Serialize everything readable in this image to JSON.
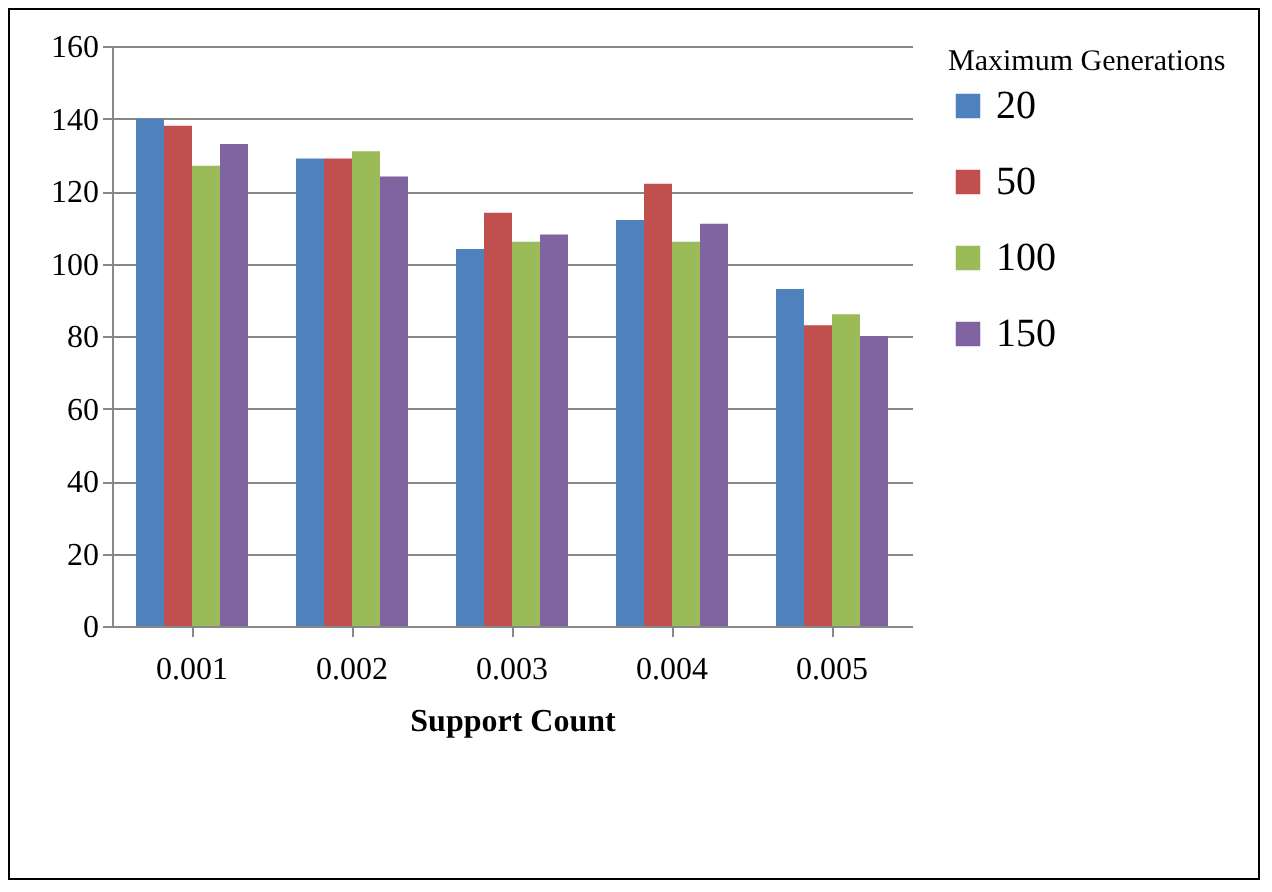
{
  "chart_data": {
    "type": "bar",
    "xlabel": "Support Count",
    "legend_title": "Maximum Generations",
    "categories": [
      "0.001",
      "0.002",
      "0.003",
      "0.004",
      "0.005"
    ],
    "series": [
      {
        "name": "20",
        "color": "#4f81bd",
        "values": [
          140,
          129,
          104,
          112,
          93
        ]
      },
      {
        "name": "50",
        "color": "#c0504d",
        "values": [
          138,
          129,
          114,
          122,
          83
        ]
      },
      {
        "name": "100",
        "color": "#9bbb59",
        "values": [
          127,
          131,
          106,
          106,
          86
        ]
      },
      {
        "name": "150",
        "color": "#8064a2",
        "values": [
          133,
          124,
          108,
          111,
          80
        ]
      }
    ],
    "ylim": [
      0,
      160
    ],
    "yticks": [
      0,
      20,
      40,
      60,
      80,
      100,
      120,
      140,
      160
    ],
    "grid": "y",
    "legend": "right"
  }
}
